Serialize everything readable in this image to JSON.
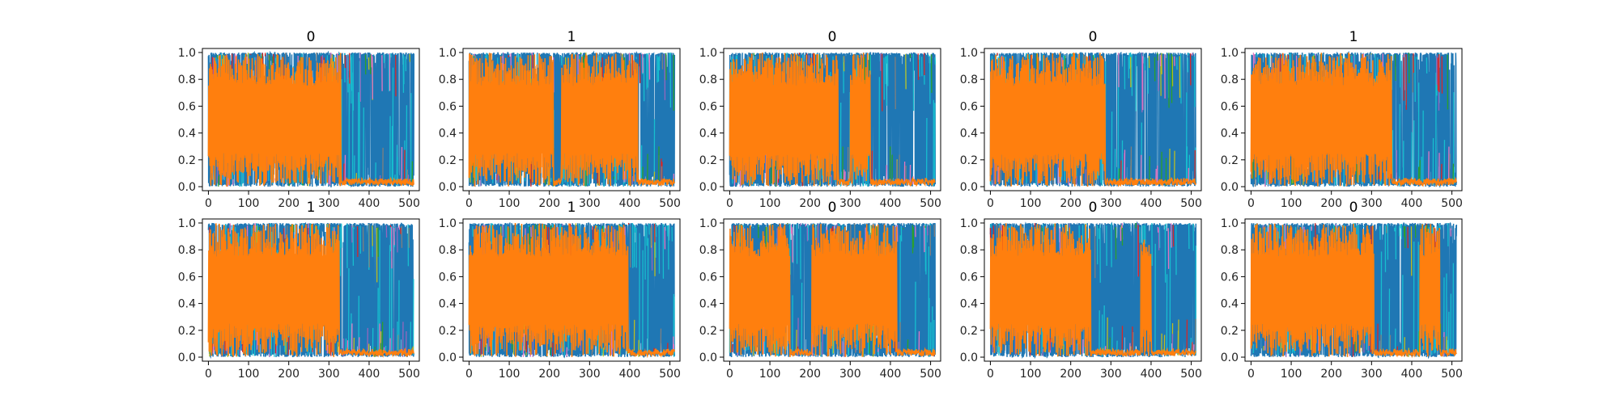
{
  "figure": {
    "background": "#ffffff",
    "layout": {
      "rows": 2,
      "cols": 5
    }
  },
  "chart_data": {
    "type": "line",
    "colors": {
      "blue": "#1f77b4",
      "orange": "#ff7f0e",
      "cyan": "#17becf",
      "olive": "#bcbd22",
      "purple": "#9467bd",
      "pink": "#e377c2",
      "green": "#2ca02c",
      "red": "#d62728",
      "gray": "#7f7f7f"
    },
    "xlim": [
      -15,
      525
    ],
    "ylim": [
      -0.03,
      1.03
    ],
    "xticks": [
      0,
      100,
      200,
      300,
      400,
      500
    ],
    "xtick_labels": [
      "0",
      "100",
      "200",
      "300",
      "400",
      "500"
    ],
    "yticks": [
      0.0,
      0.2,
      0.4,
      0.6,
      0.8,
      1.0
    ],
    "ytick_labels": [
      "0.0",
      "0.2",
      "0.4",
      "0.6",
      "0.8",
      "1.0"
    ],
    "grid": false,
    "n_points": 512,
    "panels": [
      {
        "title": "0",
        "orange_segments": [
          [
            0,
            330
          ]
        ]
      },
      {
        "title": "1",
        "orange_segments": [
          [
            0,
            210
          ],
          [
            230,
            420
          ]
        ]
      },
      {
        "title": "0",
        "orange_segments": [
          [
            0,
            270
          ],
          [
            300,
            350
          ]
        ]
      },
      {
        "title": "0",
        "orange_segments": [
          [
            0,
            285
          ]
        ]
      },
      {
        "title": "1",
        "orange_segments": [
          [
            0,
            350
          ]
        ]
      },
      {
        "title": "1",
        "orange_segments": [
          [
            0,
            325
          ]
        ]
      },
      {
        "title": "1",
        "orange_segments": [
          [
            0,
            395
          ]
        ]
      },
      {
        "title": "0",
        "orange_segments": [
          [
            0,
            150
          ],
          [
            205,
            415
          ]
        ]
      },
      {
        "title": "0",
        "orange_segments": [
          [
            0,
            250
          ],
          [
            375,
            400
          ]
        ]
      },
      {
        "title": "0",
        "orange_segments": [
          [
            0,
            305
          ],
          [
            420,
            470
          ]
        ]
      }
    ]
  }
}
